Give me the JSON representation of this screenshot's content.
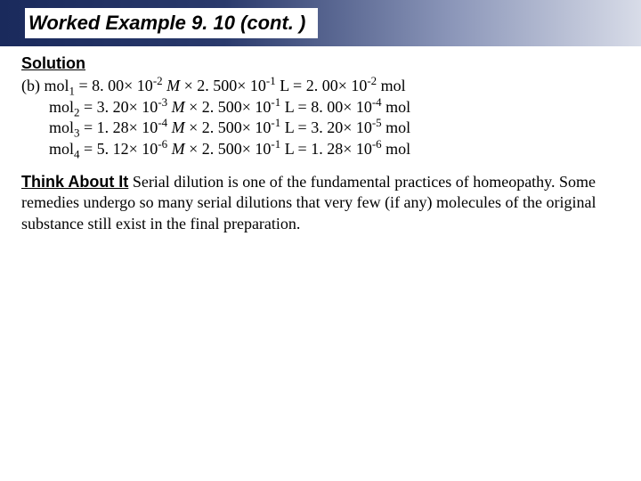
{
  "title": "Worked Example 9. 10 (cont. )",
  "solution_label": "Solution",
  "part_label": "(b)",
  "lines": [
    {
      "var": "mol",
      "sub": "1",
      "conc": "8. 00",
      "exp1": "-2",
      "vol": "2. 500",
      "expV": "-1",
      "res": "2. 00",
      "exp2": "-2"
    },
    {
      "var": "mol",
      "sub": "2",
      "conc": "3. 20",
      "exp1": "-3",
      "vol": "2. 500",
      "expV": "-1",
      "res": "8. 00",
      "exp2": "-4"
    },
    {
      "var": "mol",
      "sub": "3",
      "conc": "1. 28",
      "exp1": "-4",
      "vol": "2. 500",
      "expV": "-1",
      "res": "3. 20",
      "exp2": "-5"
    },
    {
      "var": "mol",
      "sub": "4",
      "conc": "5. 12",
      "exp1": "-6",
      "vol": "2. 500",
      "expV": "-1",
      "res": "1. 28",
      "exp2": "-6"
    }
  ],
  "molarity_symbol": "M",
  "liter_symbol": "L",
  "mol_symbol": "mol",
  "think_label": "Think About It",
  "think_text": "  Serial dilution is one of the fundamental practices of homeopathy. Some remedies undergo so many serial dilutions that very few (if any) molecules of the original substance still exist in the final preparation.",
  "colors": {
    "title_gradient_start": "#1a2a5c",
    "title_gradient_end": "#d8dce8",
    "background": "#ffffff",
    "text": "#000000"
  },
  "typography": {
    "title_font": "Arial",
    "title_size_pt": 22,
    "title_style": "bold italic",
    "body_font": "Times New Roman",
    "body_size_pt": 18,
    "heading_font": "Arial",
    "heading_style": "bold underline"
  }
}
